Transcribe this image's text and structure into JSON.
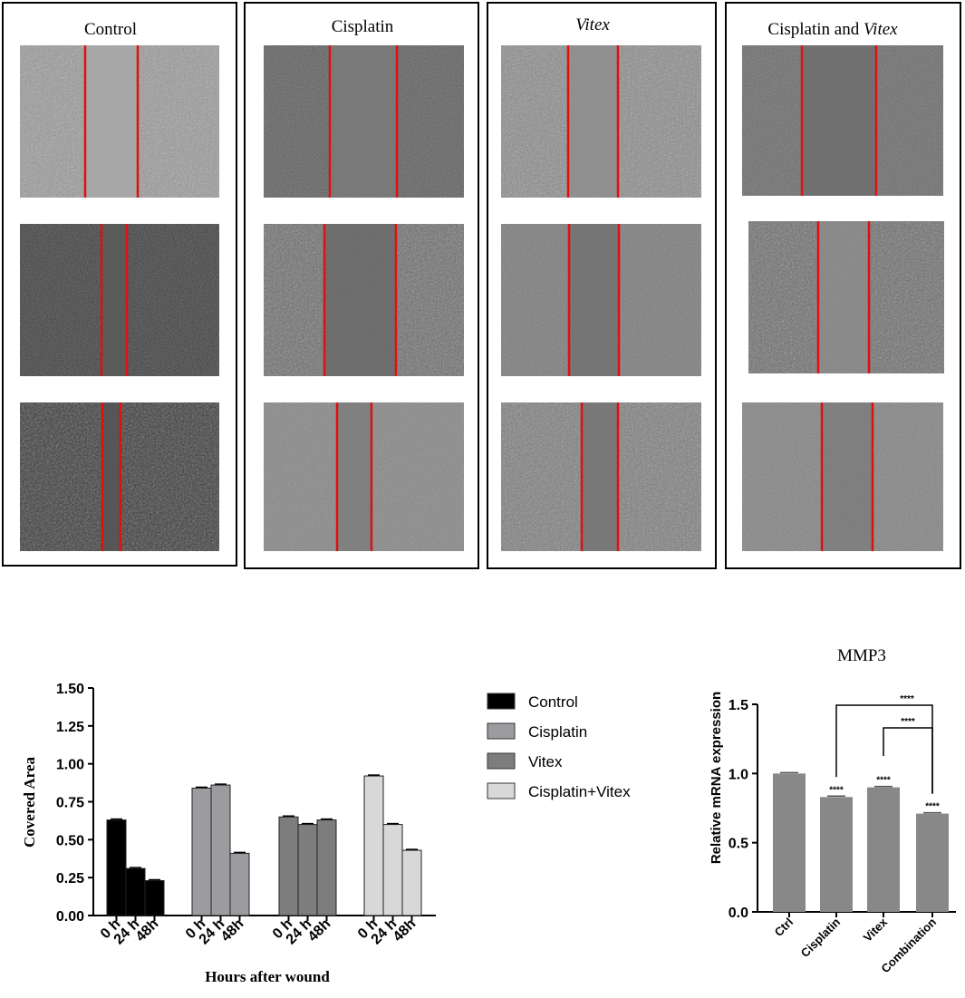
{
  "panels": [
    {
      "title": "Control",
      "title_plain": "",
      "title_italic": ""
    },
    {
      "title": "Cisplatin",
      "title_plain": "",
      "title_italic": ""
    },
    {
      "title": "",
      "title_plain": "",
      "title_italic": "Vitex"
    },
    {
      "title": "",
      "title_plain": "Cisplatin and ",
      "title_italic": "Vitex"
    }
  ],
  "chart_data": [
    {
      "type": "bar",
      "xlabel": "Hours after wound",
      "ylabel": "Covered Area",
      "ylim": [
        0,
        1.5
      ],
      "yticks": [
        "0.00",
        "0.25",
        "0.50",
        "0.75",
        "1.00",
        "1.25",
        "1.50"
      ],
      "categories": [
        "0 h",
        "24 h",
        "48h"
      ],
      "legend_position": "right",
      "series": [
        {
          "name": "Control",
          "values": [
            0.63,
            0.31,
            0.23
          ],
          "color": "#000000"
        },
        {
          "name": "Cisplatin",
          "values": [
            0.84,
            0.86,
            0.41
          ],
          "color": "#9c9ca0"
        },
        {
          "name": "Vitex",
          "values": [
            0.65,
            0.6,
            0.63
          ],
          "color": "#7d7d7d"
        },
        {
          "name": "Cisplatin+Vitex",
          "values": [
            0.92,
            0.6,
            0.43
          ],
          "color": "#d8d8d8"
        }
      ]
    },
    {
      "type": "bar",
      "title": "MMP3",
      "xlabel": "",
      "ylabel": "Relative mRNA expression",
      "ylim": [
        0,
        1.5
      ],
      "yticks": [
        "0.0",
        "0.5",
        "1.0",
        "1.5"
      ],
      "categories": [
        "Ctrl",
        "Cisplatin",
        "Vitex",
        "Combination"
      ],
      "values": [
        1.0,
        0.83,
        0.9,
        0.71
      ],
      "bar_color": "#888888",
      "bar_labels": [
        "",
        "****",
        "****",
        "****"
      ],
      "brackets": [
        {
          "from": "Cisplatin",
          "to": "Combination",
          "label": "****"
        },
        {
          "from": "Vitex",
          "to": "Combination",
          "label": "****"
        }
      ]
    }
  ]
}
